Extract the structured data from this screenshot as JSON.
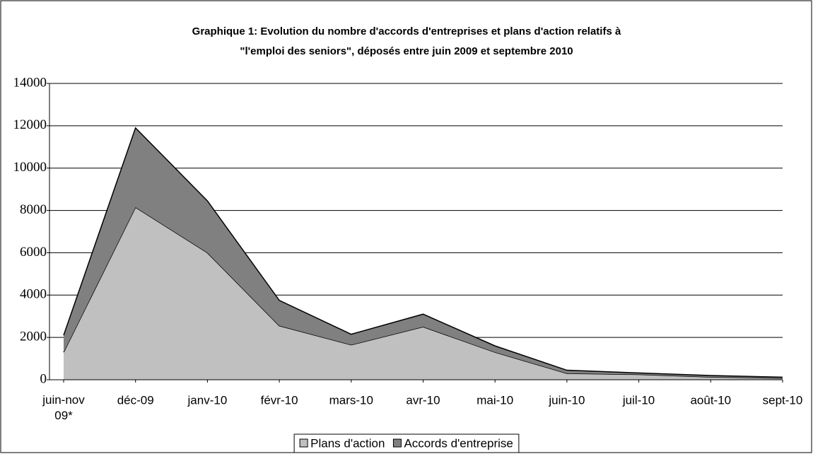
{
  "chart_data": {
    "type": "stacked_area",
    "title": [
      "Graphique 1: Evolution du nombre d'accords d'entreprises et plans d'action relatifs à",
      "\"l'emploi des seniors\", déposés entre juin 2009 et septembre 2010"
    ],
    "categories": [
      "juin-nov 09*",
      "déc-09",
      "janv-10",
      "févr-10",
      "mars-10",
      "avr-10",
      "mai-10",
      "juin-10",
      "juil-10",
      "août-10",
      "sept-10"
    ],
    "series": [
      {
        "name": "Plans d'action",
        "color": "#c0c0c0",
        "values": [
          1300,
          8150,
          6000,
          2550,
          1650,
          2500,
          1300,
          300,
          250,
          130,
          70
        ]
      },
      {
        "name": "Accords d'entreprise",
        "color": "#808080",
        "values": [
          800,
          3750,
          2450,
          1200,
          500,
          600,
          300,
          150,
          70,
          70,
          50
        ]
      }
    ],
    "ylim": [
      0,
      14000
    ],
    "yticks": [
      0,
      2000,
      4000,
      6000,
      8000,
      10000,
      12000,
      14000
    ],
    "grid": true,
    "legend": "bottom"
  }
}
